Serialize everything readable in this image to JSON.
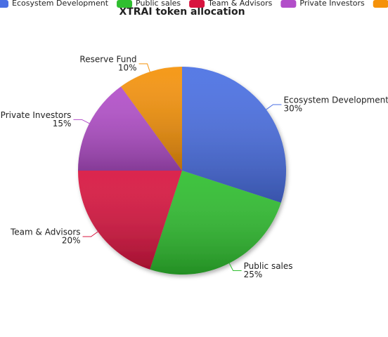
{
  "chart_data": {
    "type": "pie",
    "title": "XTRAI token allocation",
    "categories": [
      "Ecosystem Development",
      "Public sales",
      "Team & Advisors",
      "Private Investors",
      "Reserve Fund"
    ],
    "values": [
      30,
      25,
      20,
      15,
      10
    ],
    "value_labels": [
      "30%",
      "25%",
      "20%",
      "15%",
      "10%"
    ],
    "colors": [
      "#4a6fe3",
      "#2fbe2f",
      "#d8143f",
      "#b24ec9",
      "#f5920a"
    ],
    "legend": "top"
  }
}
